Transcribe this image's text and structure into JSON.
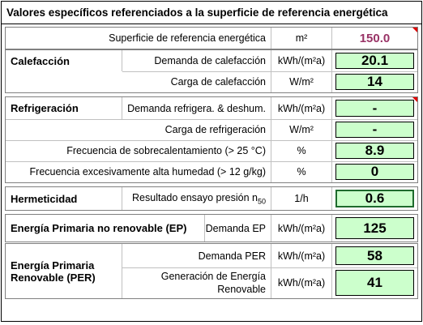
{
  "header": {
    "title": "Valores específicos referenciados a la superficie de referencia energética"
  },
  "sections": [
    {
      "rows": [
        {
          "label": "Superficie de referencia energética",
          "unit": "m²",
          "value": "150.0"
        }
      ]
    },
    {
      "title": "Calefacción",
      "rows": [
        {
          "label": "Demanda de calefacción",
          "unit": "kWh/(m²a)",
          "value": "20.1"
        },
        {
          "label": "Carga de calefacción",
          "unit": "W/m²",
          "value": "14"
        }
      ]
    },
    {
      "title": "Refrigeración",
      "rows": [
        {
          "label": "Demanda refrigera. & deshum.",
          "unit": "kWh/(m²a)",
          "value": "-"
        },
        {
          "label": "Carga de refrigeración",
          "unit": "W/m²",
          "value": "-"
        },
        {
          "label": "Frecuencia de sobrecalentamiento (> 25 °C)",
          "unit": "%",
          "value": "8.9"
        },
        {
          "label": "Frecuencia excesivamente alta humedad (> 12 g/kg)",
          "unit": "%",
          "value": "0"
        }
      ]
    },
    {
      "title": "Hermeticidad",
      "rows": [
        {
          "label": "Resultado ensayo presión n",
          "label_sub": "50",
          "unit": "1/h",
          "value": "0.6"
        }
      ]
    },
    {
      "title": "Energía Primaria no renovable (EP)",
      "rows": [
        {
          "label": "Demanda EP",
          "unit": "kWh/(m²a)",
          "value": "125"
        }
      ]
    },
    {
      "title": "Energía Primaria Renovable (PER)",
      "rows": [
        {
          "label": "Demanda PER",
          "unit": "kWh/(m²a)",
          "value": "58"
        },
        {
          "label": "Generación de Energía Renovable",
          "unit": "kWh/(m²a)",
          "value": "41"
        }
      ]
    }
  ]
}
